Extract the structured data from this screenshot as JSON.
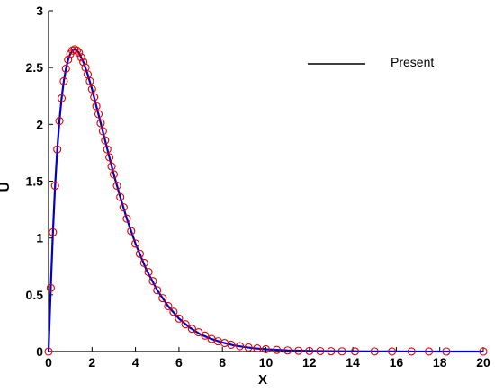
{
  "chart_data": {
    "type": "line",
    "xlabel": "X",
    "ylabel": "U",
    "xlim": [
      0,
      20
    ],
    "ylim": [
      0,
      3
    ],
    "xticks": [
      "0",
      "2",
      "4",
      "6",
      "8",
      "10",
      "12",
      "14",
      "16",
      "18",
      "20"
    ],
    "yticks": [
      "0",
      "0.5",
      "1",
      "1.5",
      "2",
      "2.5",
      "3"
    ],
    "grid": false,
    "legend": {
      "placement": "top-right",
      "entries": [
        "Present"
      ]
    },
    "series": [
      {
        "name": "Present",
        "style": "line",
        "color": "#0000cc",
        "x": [
          0,
          0.1,
          0.2,
          0.3,
          0.4,
          0.5,
          0.6,
          0.7,
          0.8,
          0.9,
          1.0,
          1.1,
          1.2,
          1.3,
          1.4,
          1.5,
          1.6,
          1.8,
          2.0,
          2.2,
          2.4,
          2.6,
          2.8,
          3.0,
          3.3,
          3.6,
          4.0,
          4.5,
          5.0,
          5.5,
          6.0,
          6.5,
          7.0,
          7.5,
          8.0,
          8.5,
          9.0,
          9.5,
          10.0,
          11.0,
          12.0,
          13.0,
          14.0,
          15.0,
          16.0,
          17.0,
          18.0,
          19.0,
          20.0
        ],
        "y": [
          0,
          0.56,
          1.05,
          1.46,
          1.78,
          2.03,
          2.23,
          2.38,
          2.49,
          2.57,
          2.62,
          2.65,
          2.66,
          2.65,
          2.63,
          2.59,
          2.55,
          2.44,
          2.31,
          2.16,
          2.01,
          1.86,
          1.71,
          1.56,
          1.36,
          1.17,
          0.95,
          0.72,
          0.54,
          0.4,
          0.29,
          0.21,
          0.15,
          0.11,
          0.08,
          0.055,
          0.04,
          0.028,
          0.02,
          0.01,
          0.005,
          0.003,
          0.002,
          0.001,
          0.0007,
          0.0004,
          0.0002,
          0.0001,
          0
        ]
      },
      {
        "style": "markers",
        "marker": "circle",
        "color": "#dd0000",
        "x": [
          0,
          0.1,
          0.2,
          0.3,
          0.4,
          0.5,
          0.6,
          0.7,
          0.8,
          0.9,
          1.0,
          1.1,
          1.2,
          1.3,
          1.4,
          1.5,
          1.6,
          1.7,
          1.8,
          1.9,
          2.0,
          2.1,
          2.2,
          2.3,
          2.4,
          2.5,
          2.6,
          2.7,
          2.8,
          2.9,
          3.0,
          3.15,
          3.3,
          3.45,
          3.6,
          3.8,
          4.0,
          4.2,
          4.4,
          4.6,
          4.8,
          5.0,
          5.25,
          5.5,
          5.75,
          6.0,
          6.3,
          6.6,
          6.9,
          7.2,
          7.5,
          7.8,
          8.1,
          8.4,
          8.8,
          9.2,
          9.6,
          10.0,
          10.5,
          11.0,
          11.5,
          12.0,
          12.5,
          13.0,
          13.5,
          14.1,
          15.0,
          15.8,
          16.7,
          17.5,
          18.3,
          20.0
        ],
        "y": [
          0,
          0.56,
          1.05,
          1.46,
          1.78,
          2.03,
          2.23,
          2.38,
          2.49,
          2.57,
          2.62,
          2.65,
          2.66,
          2.65,
          2.63,
          2.59,
          2.55,
          2.5,
          2.44,
          2.38,
          2.31,
          2.24,
          2.16,
          2.09,
          2.01,
          1.94,
          1.86,
          1.78,
          1.71,
          1.63,
          1.56,
          1.46,
          1.36,
          1.27,
          1.17,
          1.06,
          0.95,
          0.86,
          0.78,
          0.7,
          0.62,
          0.54,
          0.47,
          0.4,
          0.35,
          0.29,
          0.24,
          0.2,
          0.17,
          0.14,
          0.11,
          0.09,
          0.075,
          0.06,
          0.047,
          0.036,
          0.027,
          0.02,
          0.014,
          0.01,
          0.007,
          0.005,
          0.004,
          0.003,
          0.002,
          0.0015,
          0.001,
          0.0007,
          0.0004,
          0.0002,
          0.0001,
          0
        ]
      }
    ]
  }
}
